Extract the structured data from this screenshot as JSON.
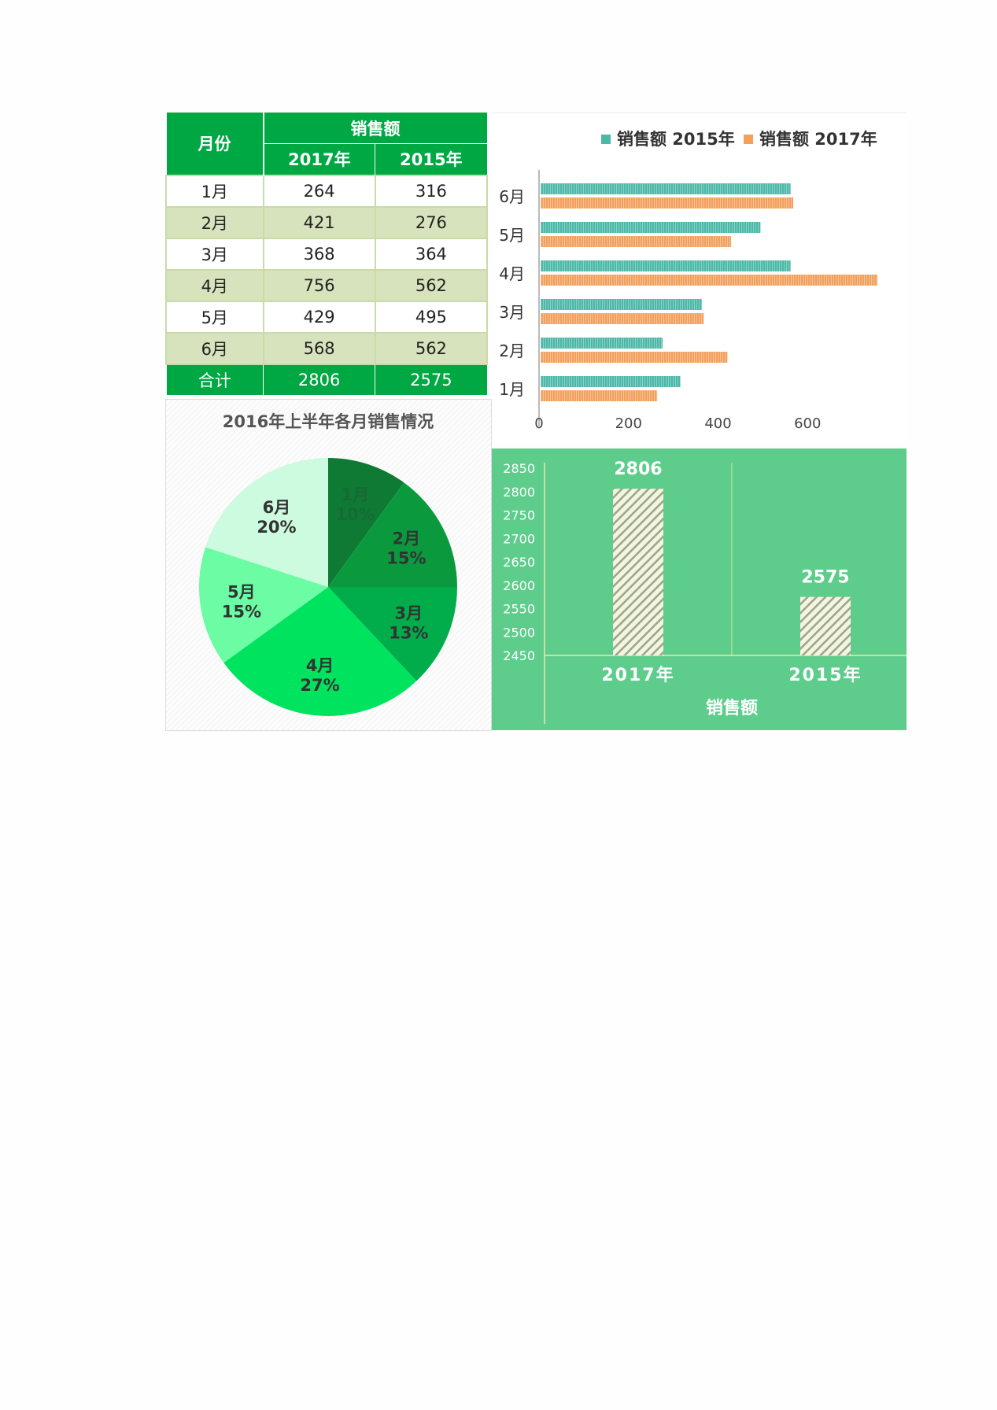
{
  "table": {
    "header_month": "月份",
    "header_sales": "销售额",
    "header_years": [
      "2017年",
      "2015年"
    ],
    "rows": [
      {
        "month": "1月",
        "v2017": "264",
        "v2015": "316"
      },
      {
        "month": "2月",
        "v2017": "421",
        "v2015": "276"
      },
      {
        "month": "3月",
        "v2017": "368",
        "v2015": "364"
      },
      {
        "month": "4月",
        "v2017": "756",
        "v2015": "562"
      },
      {
        "month": "5月",
        "v2017": "429",
        "v2015": "495"
      },
      {
        "month": "6月",
        "v2017": "568",
        "v2015": "562"
      }
    ],
    "total": {
      "label": "合计",
      "v2017": "2806",
      "v2015": "2575"
    }
  },
  "colors": {
    "header_green": "#00a844",
    "stripe": "#d6e3bc",
    "teal": "#4bb8a8",
    "orange": "#f2a05c",
    "panel_green": "#5ecd8c"
  },
  "chart_data": [
    {
      "type": "bar",
      "orientation": "horizontal",
      "categories": [
        "1月",
        "2月",
        "3月",
        "4月",
        "5月",
        "6月"
      ],
      "series": [
        {
          "name": "销售额 2015年",
          "values": [
            316,
            276,
            364,
            562,
            495,
            562
          ],
          "color": "#4bb8a8"
        },
        {
          "name": "销售额 2017年",
          "values": [
            264,
            421,
            368,
            756,
            429,
            568
          ],
          "color": "#f2a05c"
        }
      ],
      "xlim": [
        0,
        800
      ],
      "xticks": [
        0,
        200,
        400,
        600
      ],
      "legend": "top",
      "grid": false
    },
    {
      "type": "pie",
      "title": "2016年上半年各月销售情况",
      "labels": [
        "1月",
        "2月",
        "3月",
        "4月",
        "5月",
        "6月"
      ],
      "values": [
        10,
        15,
        13,
        27,
        15,
        20
      ],
      "percent_labels": [
        "10%",
        "15%",
        "13%",
        "27%",
        "15%",
        "20%"
      ],
      "colors": [
        "#0e7a34",
        "#0a9a3d",
        "#00ad4a",
        "#00e35f",
        "#6cfca3",
        "#cdfbdf"
      ]
    },
    {
      "type": "bar",
      "categories": [
        "2017年",
        "2015年"
      ],
      "values": [
        2806,
        2575
      ],
      "data_labels": [
        "2806",
        "2575"
      ],
      "xlabel": "销售额",
      "ylim": [
        2450,
        2850
      ],
      "yticks": [
        2450,
        2500,
        2550,
        2600,
        2650,
        2700,
        2750,
        2800,
        2850
      ],
      "grid": false
    }
  ]
}
